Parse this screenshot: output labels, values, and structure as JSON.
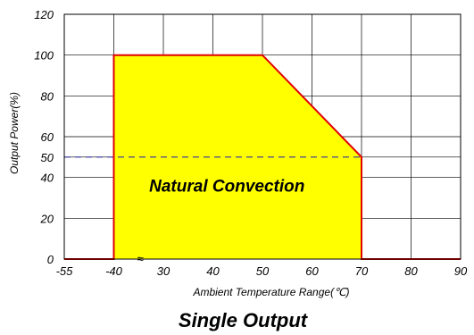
{
  "chart_data": {
    "type": "area",
    "title": "Single Output",
    "xlabel": "Ambient Temperature Range(℃)",
    "ylabel": "Output Power(%)",
    "x_ticks": [
      "-55",
      "-40",
      "30",
      "40",
      "50",
      "60",
      "70",
      "80",
      "90"
    ],
    "y_ticks": [
      "0",
      "20",
      "40",
      "50",
      "60",
      "80",
      "100",
      "120"
    ],
    "ylim": [
      0,
      120
    ],
    "axis_break": "≈",
    "grid": true,
    "annotation": "Natural Convection",
    "reference_line": {
      "y": 50,
      "style": "dashed"
    },
    "series": [
      {
        "x": [
          "-55",
          "-40",
          "-40",
          "50",
          "70",
          "70",
          "90"
        ],
        "y": [
          0,
          0,
          100,
          100,
          50,
          0,
          0
        ]
      }
    ],
    "colors": {
      "fill": "#ffff00",
      "line": "#e00000",
      "reference": "#3030a0",
      "grid": "#000000"
    }
  }
}
